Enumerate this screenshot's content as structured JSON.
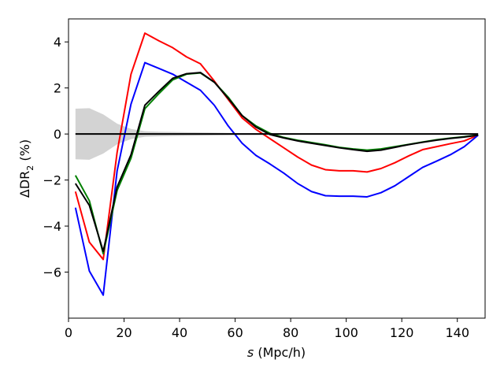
{
  "chart_data": {
    "type": "line",
    "title": "",
    "xlabel_italic": "s",
    "xlabel_rest": " (Mpc/h)",
    "ylabel_main": "ΔDR",
    "ylabel_sub": "2",
    "ylabel_rest": " (%)",
    "xlim": [
      0,
      150
    ],
    "ylim": [
      -8,
      5
    ],
    "xticks": [
      0,
      20,
      40,
      60,
      80,
      100,
      120,
      140
    ],
    "yticks": [
      -6,
      -4,
      -2,
      0,
      2,
      4
    ],
    "xtick_labels": [
      "0",
      "20",
      "40",
      "60",
      "80",
      "100",
      "120",
      "140"
    ],
    "ytick_labels": [
      "−6",
      "−4",
      "−2",
      "0",
      "2",
      "4"
    ],
    "x": [
      2.5,
      7.5,
      12.5,
      17.5,
      22.5,
      27.5,
      32.5,
      37.5,
      42.5,
      47.5,
      52.5,
      57.5,
      62.5,
      67.5,
      72.5,
      77.5,
      82.5,
      87.5,
      92.5,
      97.5,
      102.5,
      107.5,
      112.5,
      117.5,
      122.5,
      127.5,
      132.5,
      137.5,
      142.5,
      147.5
    ],
    "band": {
      "name": "uncertainty",
      "color": "#d3d3d3",
      "upper": [
        1.1,
        1.12,
        0.85,
        0.45,
        0.22,
        0.12,
        0.1,
        0.09,
        0.08,
        0.07,
        0.06,
        0.05,
        0.04,
        0.04,
        0.03,
        0.03,
        0.03,
        0.03,
        0.03,
        0.02,
        0.02,
        0.02,
        0.02,
        0.02,
        0.02,
        0.02,
        0.02,
        0.02,
        0.02,
        0.02
      ],
      "lower": [
        -1.1,
        -1.12,
        -0.85,
        -0.45,
        -0.22,
        -0.12,
        -0.1,
        -0.09,
        -0.08,
        -0.07,
        -0.06,
        -0.05,
        -0.04,
        -0.04,
        -0.03,
        -0.03,
        -0.03,
        -0.03,
        -0.03,
        -0.02,
        -0.02,
        -0.02,
        -0.02,
        -0.02,
        -0.02,
        -0.02,
        -0.02,
        -0.02,
        -0.02,
        -0.02
      ]
    },
    "reference_line": {
      "y": 0,
      "color": "#000000"
    },
    "series": [
      {
        "name": "red",
        "color": "#ff0000",
        "values": [
          -2.5,
          -4.7,
          -5.45,
          -0.8,
          2.6,
          4.38,
          4.05,
          3.75,
          3.35,
          3.05,
          2.3,
          1.5,
          0.7,
          0.2,
          -0.2,
          -0.6,
          -1.0,
          -1.35,
          -1.55,
          -1.6,
          -1.6,
          -1.65,
          -1.5,
          -1.25,
          -0.95,
          -0.68,
          -0.55,
          -0.42,
          -0.3,
          -0.05
        ]
      },
      {
        "name": "blue",
        "color": "#0000ff",
        "values": [
          -3.2,
          -5.95,
          -7.0,
          -1.6,
          1.3,
          3.1,
          2.85,
          2.6,
          2.25,
          1.9,
          1.25,
          0.35,
          -0.4,
          -0.93,
          -1.3,
          -1.7,
          -2.15,
          -2.5,
          -2.68,
          -2.7,
          -2.7,
          -2.73,
          -2.55,
          -2.25,
          -1.85,
          -1.45,
          -1.18,
          -0.9,
          -0.55,
          -0.05
        ]
      },
      {
        "name": "green",
        "color": "#008000",
        "values": [
          -1.8,
          -2.9,
          -5.2,
          -2.45,
          -1.05,
          1.1,
          1.75,
          2.35,
          2.6,
          2.65,
          2.25,
          1.6,
          0.8,
          0.35,
          0.03,
          -0.15,
          -0.27,
          -0.37,
          -0.47,
          -0.58,
          -0.65,
          -0.7,
          -0.65,
          -0.55,
          -0.45,
          -0.35,
          -0.25,
          -0.18,
          -0.12,
          -0.04
        ]
      },
      {
        "name": "black",
        "color": "#000000",
        "values": [
          -2.15,
          -3.1,
          -5.1,
          -2.3,
          -0.9,
          1.25,
          1.85,
          2.42,
          2.62,
          2.67,
          2.25,
          1.55,
          0.8,
          0.3,
          -0.02,
          -0.17,
          -0.3,
          -0.4,
          -0.5,
          -0.6,
          -0.68,
          -0.75,
          -0.7,
          -0.58,
          -0.46,
          -0.36,
          -0.27,
          -0.19,
          -0.13,
          -0.05
        ]
      }
    ]
  }
}
